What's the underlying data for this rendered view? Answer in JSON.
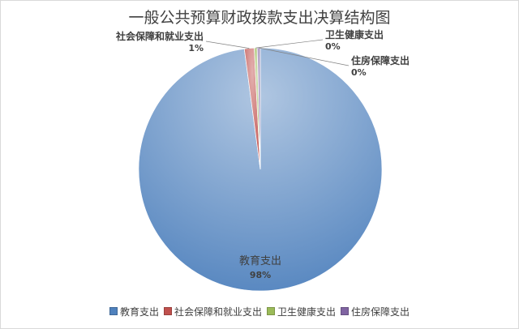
{
  "chart_data": {
    "type": "pie",
    "title": "一般公共预算财政拨款支出决算结构图",
    "categories": [
      "教育支出",
      "社会保障和就业支出",
      "卫生健康支出",
      "住房保障支出"
    ],
    "values": [
      97.9,
      1.3,
      0.4,
      0.4
    ],
    "data_labels": [
      "98%",
      "1%",
      "0%",
      "0%"
    ],
    "colors": [
      "#4f81bd",
      "#c0504d",
      "#9bbb59",
      "#8064a2"
    ],
    "legend_position": "bottom"
  }
}
